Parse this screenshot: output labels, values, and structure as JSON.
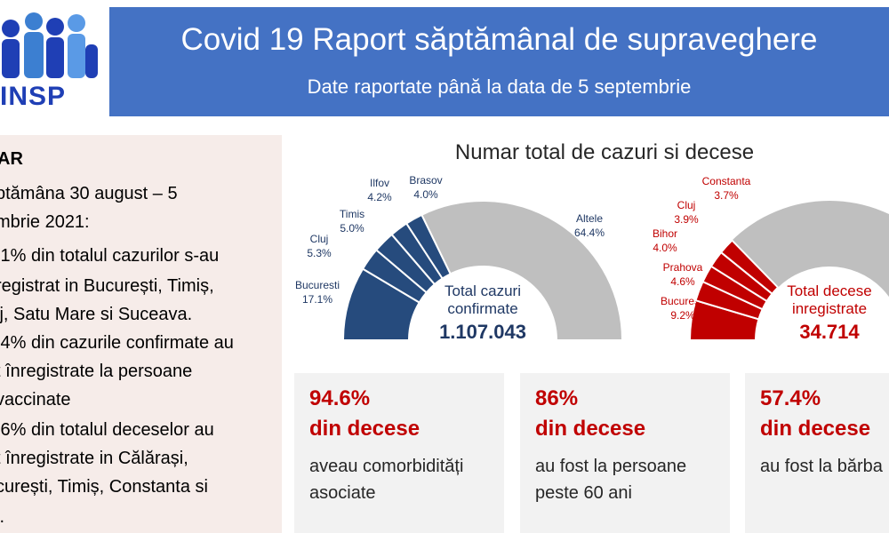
{
  "logo": {
    "text": "INSP"
  },
  "header": {
    "title": "Covid 19 Raport săptămânal de supraveghere",
    "subtitle": "Date raportate până la data de 5 septembrie"
  },
  "summary": {
    "heading": "AR",
    "lines": [
      "ptămâna 30 august – 5",
      "mbrie 2021:",
      ",1% din totalul cazurilor s-au",
      "registrat in București, Timiș,",
      "ij, Satu Mare si Suceava.",
      ",4% din cazurile confirmate au",
      "t înregistrate la persoane",
      "vaccinate",
      ",6% din totalul deceselor au",
      "t înregistrate in Călărași,",
      "curești, Timiș, Constanta si",
      "i."
    ]
  },
  "chart_data": [
    {
      "type": "pie",
      "title": "Numar total de cazuri si decese",
      "center_label": [
        "Total cazuri",
        "confirmate"
      ],
      "center_value": "1.107.043",
      "slices": [
        {
          "label": "Bucuresti",
          "value_label": "17.1%",
          "value": 17.1,
          "color": "#264b7d"
        },
        {
          "label": "Cluj",
          "value_label": "5.3%",
          "value": 5.3,
          "color": "#264b7d"
        },
        {
          "label": "Timis",
          "value_label": "5.0%",
          "value": 5.0,
          "color": "#264b7d"
        },
        {
          "label": "Ilfov",
          "value_label": "4.2%",
          "value": 4.2,
          "color": "#264b7d"
        },
        {
          "label": "Brasov",
          "value_label": "4.0%",
          "value": 4.0,
          "color": "#264b7d"
        },
        {
          "label": "Altele",
          "value_label": "64.4%",
          "value": 64.4,
          "color": "#bfbfbf"
        }
      ]
    },
    {
      "type": "pie",
      "title": "",
      "center_label": [
        "Total decese",
        "inregistrate"
      ],
      "center_value": "34.714",
      "slices": [
        {
          "label": "Bucuresti",
          "value_label": "9.2%",
          "value": 9.2,
          "color": "#c00000"
        },
        {
          "label": "Prahova",
          "value_label": "4.6%",
          "value": 4.6,
          "color": "#c00000"
        },
        {
          "label": "Bihor",
          "value_label": "4.0%",
          "value": 4.0,
          "color": "#c00000"
        },
        {
          "label": "Cluj",
          "value_label": "3.9%",
          "value": 3.9,
          "color": "#c00000"
        },
        {
          "label": "Constanta",
          "value_label": "3.7%",
          "value": 3.7,
          "color": "#c00000"
        }
      ]
    }
  ],
  "cards": [
    {
      "pct": "94.6%",
      "sub": "din decese",
      "desc": [
        "aveau comorbidități",
        "asociate"
      ]
    },
    {
      "pct": "86%",
      "sub": "din decese",
      "desc": [
        "au fost la persoane",
        "peste 60 ani"
      ]
    },
    {
      "pct": "57.4%",
      "sub": "din decese",
      "desc": [
        "au fost la bărba"
      ]
    }
  ],
  "colors": {
    "header": "#4472c4",
    "accent_red": "#c00000",
    "accent_blue": "#264b7d",
    "grey": "#bfbfbf"
  }
}
